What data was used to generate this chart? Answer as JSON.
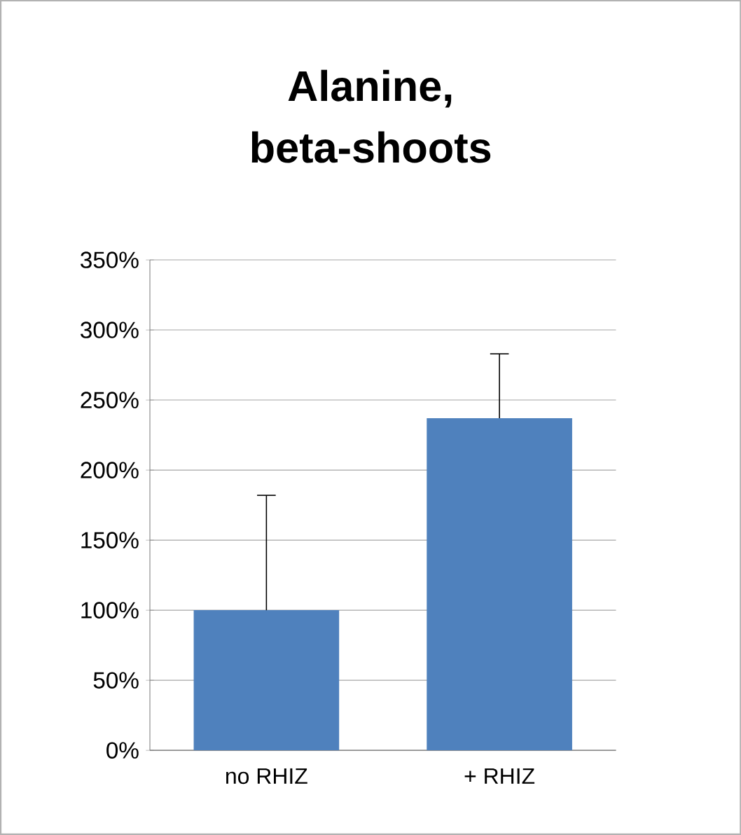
{
  "chart_data": {
    "type": "bar",
    "title": "Alanine, beta-shoots",
    "categories": [
      "no RHIZ",
      "+ RHIZ"
    ],
    "values": [
      100,
      237
    ],
    "errors": [
      [
        100,
        182
      ],
      [
        237,
        283
      ]
    ],
    "color": "#4f81bd",
    "ylim": [
      0,
      350
    ],
    "yticks": [
      {
        "value": 0,
        "label": "0%"
      },
      {
        "value": 50,
        "label": "50%"
      },
      {
        "value": 100,
        "label": "100%"
      },
      {
        "value": 150,
        "label": "150%"
      },
      {
        "value": 200,
        "label": "200%"
      },
      {
        "value": 250,
        "label": "250%"
      },
      {
        "value": 300,
        "label": "300%"
      },
      {
        "value": 350,
        "label": "350%"
      }
    ],
    "grid": "y"
  }
}
